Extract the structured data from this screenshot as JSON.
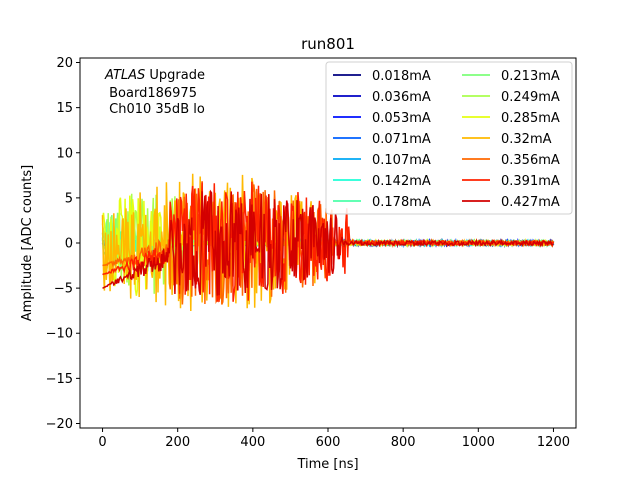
{
  "chart_data": {
    "type": "line",
    "title": "run801",
    "xlabel": "Time [ns]",
    "ylabel": "Amplitude [ADC counts]",
    "xlim": [
      -60,
      1260
    ],
    "ylim": [
      -20.5,
      20.5
    ],
    "xticks": [
      0,
      200,
      400,
      600,
      800,
      1000,
      1200
    ],
    "yticks": [
      -20,
      -15,
      -10,
      -5,
      0,
      5,
      10,
      15,
      20
    ],
    "grid": false,
    "legend_position": "top-right",
    "legend_columns": 2,
    "annotation": {
      "italic_part": "ATLAS",
      "rest_of_first_line": " Upgrade",
      "line2": " Board186975",
      "line3": " Ch010 35dB lo"
    },
    "series": [
      {
        "name": "0.018mA",
        "color": "#000080",
        "noise_end": 0,
        "amp": 0.2,
        "baseline_start": 0.0
      },
      {
        "name": "0.036mA",
        "color": "#0000c4",
        "noise_end": 0,
        "amp": 0.2,
        "baseline_start": 0.0
      },
      {
        "name": "0.053mA",
        "color": "#0010ff",
        "noise_end": 0,
        "amp": 0.2,
        "baseline_start": 0.0
      },
      {
        "name": "0.071mA",
        "color": "#0060ff",
        "noise_end": 0,
        "amp": 0.2,
        "baseline_start": 0.0
      },
      {
        "name": "0.107mA",
        "color": "#00a8f4",
        "noise_end": 0,
        "amp": 0.25,
        "baseline_start": 0.0
      },
      {
        "name": "0.142mA",
        "color": "#1fffd7",
        "noise_end": 60,
        "amp": 2.0,
        "baseline_start": 0.0
      },
      {
        "name": "0.178mA",
        "color": "#4dffaa",
        "noise_end": 120,
        "amp": 3.0,
        "baseline_start": 0.0
      },
      {
        "name": "0.213mA",
        "color": "#7dff7a",
        "noise_end": 150,
        "amp": 4.0,
        "baseline_start": 0.0
      },
      {
        "name": "0.249mA",
        "color": "#aaff4d",
        "noise_end": 260,
        "amp": 6.0,
        "baseline_start": 0.0
      },
      {
        "name": "0.285mA",
        "color": "#e4ff13",
        "noise_end": 160,
        "amp": 6.0,
        "baseline_start": 0.0
      },
      {
        "name": "0.32mA",
        "color": "#ffb900",
        "noise_end": 570,
        "amp": 8.0,
        "baseline_start": -1.0
      },
      {
        "name": "0.356mA",
        "color": "#ff6800",
        "noise_end": 620,
        "amp": 7.0,
        "baseline_start": -2.5
      },
      {
        "name": "0.391mA",
        "color": "#ff2200",
        "noise_end": 660,
        "amp": 7.0,
        "baseline_start": -3.5
      },
      {
        "name": "0.427mA",
        "color": "#d30000",
        "noise_end": 640,
        "amp": 6.0,
        "baseline_start": -5.0
      }
    ]
  }
}
